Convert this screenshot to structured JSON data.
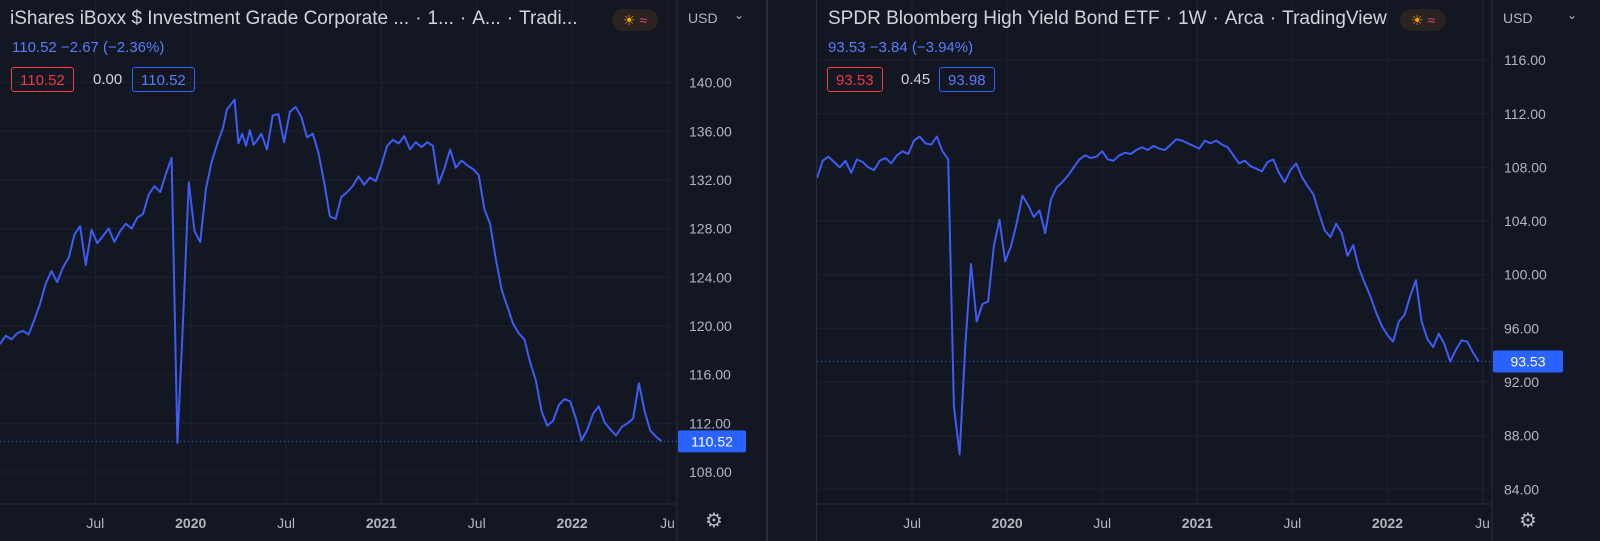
{
  "left": {
    "legend": {
      "title": "iShares iBoxx $ Investment Grade Corporate ...",
      "interval": "1...",
      "exchange": "A...",
      "source": "Tradi...",
      "change_line": "110.52  −2.67 (−2.36%)",
      "bid": "110.52",
      "spread": "0.00",
      "ask": "110.52"
    },
    "currency": "USD",
    "last_price_label": "110.52",
    "icons": {
      "weather": "sun-icon",
      "wave": "wave-icon",
      "settings": "gear-icon",
      "dropdown": "chevron-down-icon"
    },
    "colors": {
      "line": "#3d5cf5",
      "price_tag": "#2962ff",
      "bid_border": "#f23645",
      "ask_border": "#2962ff"
    }
  },
  "right": {
    "legend": {
      "title": "SPDR Bloomberg High Yield Bond ETF",
      "interval": "1W",
      "exchange": "Arca",
      "source": "TradingView",
      "change_line": "93.53  −3.84 (−3.94%)",
      "bid": "93.53",
      "spread": "0.45",
      "ask": "93.98"
    },
    "currency": "USD",
    "last_price_label": "93.53",
    "icons": {
      "weather": "sun-icon",
      "wave": "wave-icon",
      "settings": "gear-icon",
      "dropdown": "chevron-down-icon"
    },
    "colors": {
      "line": "#3d5cf5",
      "price_tag": "#2962ff",
      "bid_border": "#f23645",
      "ask_border": "#2962ff"
    }
  },
  "chart_data": [
    {
      "type": "line",
      "title": "iShares iBoxx $ Investment Grade Corporate ...",
      "xlabel": "",
      "ylabel": "",
      "x_ticks": [
        "Jul",
        "2020",
        "Jul",
        "2021",
        "Jul",
        "2022",
        "Ju"
      ],
      "x_tick_pos": [
        0.5,
        1.0,
        1.5,
        2.0,
        2.5,
        3.0,
        3.5
      ],
      "y_ticks": [
        "108.00",
        "112.00",
        "116.00",
        "120.00",
        "124.00",
        "128.00",
        "132.00",
        "136.00",
        "140.00"
      ],
      "ylim": [
        105.7,
        143.5
      ],
      "xlim": [
        0.0,
        3.55
      ],
      "last_price": 110.52,
      "grid": true,
      "x": [
        0.0,
        0.03,
        0.06,
        0.09,
        0.12,
        0.15,
        0.18,
        0.21,
        0.24,
        0.27,
        0.3,
        0.33,
        0.36,
        0.39,
        0.42,
        0.45,
        0.48,
        0.51,
        0.54,
        0.57,
        0.6,
        0.63,
        0.66,
        0.69,
        0.72,
        0.75,
        0.78,
        0.81,
        0.84,
        0.87,
        0.9,
        0.93,
        0.96,
        0.99,
        1.02,
        1.05,
        1.08,
        1.11,
        1.14,
        1.17,
        1.19,
        1.21,
        1.23,
        1.25,
        1.27,
        1.29,
        1.31,
        1.33,
        1.35,
        1.37,
        1.4,
        1.43,
        1.46,
        1.49,
        1.52,
        1.55,
        1.58,
        1.61,
        1.64,
        1.67,
        1.7,
        1.73,
        1.76,
        1.79,
        1.82,
        1.85,
        1.88,
        1.91,
        1.94,
        1.97,
        2.0,
        2.03,
        2.06,
        2.09,
        2.12,
        2.15,
        2.18,
        2.21,
        2.24,
        2.27,
        2.3,
        2.33,
        2.36,
        2.39,
        2.42,
        2.45,
        2.48,
        2.51,
        2.54,
        2.57,
        2.6,
        2.63,
        2.66,
        2.69,
        2.72,
        2.75,
        2.78,
        2.81,
        2.84,
        2.87,
        2.9,
        2.93,
        2.96,
        2.99,
        3.02,
        3.05,
        3.08,
        3.11,
        3.14,
        3.17,
        3.2,
        3.23,
        3.26,
        3.29,
        3.32,
        3.35,
        3.38,
        3.41,
        3.44,
        3.47
      ],
      "y": [
        118.5,
        119.2,
        118.9,
        119.4,
        119.6,
        119.3,
        120.5,
        121.8,
        123.5,
        124.5,
        123.6,
        124.8,
        125.6,
        127.5,
        128.2,
        125.0,
        127.9,
        126.8,
        127.4,
        128.0,
        126.9,
        127.8,
        128.4,
        128.0,
        128.9,
        129.2,
        130.8,
        131.5,
        131.0,
        132.5,
        133.8,
        110.4,
        120.5,
        131.8,
        127.8,
        126.9,
        131.3,
        133.5,
        135.0,
        136.3,
        137.8,
        138.2,
        138.6,
        135.0,
        135.8,
        134.8,
        136.1,
        134.9,
        135.3,
        135.8,
        134.5,
        137.3,
        137.4,
        135.1,
        137.6,
        138.0,
        137.2,
        135.5,
        135.8,
        134.2,
        131.8,
        129.0,
        128.8,
        130.6,
        131.0,
        131.5,
        132.3,
        131.6,
        132.2,
        131.9,
        133.2,
        134.8,
        135.3,
        135.0,
        135.6,
        134.5,
        135.1,
        134.7,
        135.1,
        134.8,
        131.7,
        132.9,
        134.5,
        133.0,
        133.6,
        133.2,
        132.9,
        132.4,
        129.6,
        128.4,
        125.5,
        123.0,
        121.6,
        120.2,
        119.4,
        118.9,
        117.0,
        115.5,
        113.0,
        111.8,
        112.2,
        113.5,
        114.0,
        113.8,
        112.4,
        110.6,
        111.5,
        112.8,
        113.4,
        112.1,
        111.5,
        111.0,
        111.7,
        112.0,
        112.4,
        115.3,
        113.0,
        111.4,
        110.9,
        110.52
      ]
    },
    {
      "type": "line",
      "title": "SPDR Bloomberg High Yield Bond ETF",
      "xlabel": "",
      "ylabel": "",
      "x_ticks": [
        "Jul",
        "2020",
        "Jul",
        "2021",
        "Jul",
        "2022",
        "Ju"
      ],
      "x_tick_pos": [
        0.5,
        1.0,
        1.5,
        2.0,
        2.5,
        3.0,
        3.5
      ],
      "y_ticks": [
        "84.00",
        "88.00",
        "92.00",
        "96.00",
        "100.00",
        "104.00",
        "108.00",
        "112.00",
        "116.00"
      ],
      "ylim": [
        83.2,
        117.5
      ],
      "xlim": [
        0.0,
        3.55
      ],
      "last_price": 93.53,
      "grid": true,
      "x": [
        0.0,
        0.03,
        0.06,
        0.09,
        0.12,
        0.15,
        0.18,
        0.21,
        0.24,
        0.27,
        0.3,
        0.33,
        0.36,
        0.39,
        0.42,
        0.45,
        0.48,
        0.51,
        0.54,
        0.57,
        0.6,
        0.63,
        0.66,
        0.69,
        0.72,
        0.75,
        0.78,
        0.81,
        0.84,
        0.87,
        0.9,
        0.93,
        0.96,
        0.99,
        1.02,
        1.05,
        1.08,
        1.11,
        1.14,
        1.17,
        1.2,
        1.23,
        1.26,
        1.29,
        1.32,
        1.35,
        1.38,
        1.41,
        1.44,
        1.47,
        1.5,
        1.53,
        1.56,
        1.59,
        1.62,
        1.65,
        1.68,
        1.71,
        1.74,
        1.77,
        1.8,
        1.83,
        1.86,
        1.89,
        1.92,
        1.95,
        1.98,
        2.01,
        2.04,
        2.07,
        2.1,
        2.13,
        2.16,
        2.19,
        2.22,
        2.25,
        2.28,
        2.31,
        2.34,
        2.37,
        2.4,
        2.43,
        2.46,
        2.49,
        2.52,
        2.55,
        2.58,
        2.61,
        2.64,
        2.67,
        2.7,
        2.73,
        2.76,
        2.79,
        2.82,
        2.85,
        2.88,
        2.91,
        2.94,
        2.97,
        3.0,
        3.03,
        3.06,
        3.09,
        3.12,
        3.15,
        3.18,
        3.21,
        3.24,
        3.27,
        3.3,
        3.33,
        3.36,
        3.39,
        3.42,
        3.45,
        3.48
      ],
      "y": [
        107.2,
        108.5,
        108.8,
        108.4,
        108.0,
        108.5,
        107.6,
        108.6,
        108.4,
        108.0,
        107.8,
        108.5,
        108.7,
        108.3,
        108.9,
        109.2,
        109.0,
        110.0,
        110.3,
        109.8,
        109.7,
        110.3,
        109.2,
        108.6,
        90.2,
        86.6,
        94.7,
        100.8,
        96.5,
        97.8,
        98.0,
        102.1,
        104.1,
        101.0,
        102.1,
        103.8,
        105.9,
        105.2,
        104.3,
        104.8,
        103.1,
        105.6,
        106.5,
        106.9,
        107.4,
        108.0,
        108.6,
        108.9,
        108.7,
        108.8,
        109.2,
        108.6,
        108.5,
        108.9,
        109.1,
        109.0,
        109.3,
        109.5,
        109.3,
        109.6,
        109.4,
        109.3,
        109.7,
        110.1,
        110.0,
        109.8,
        109.6,
        109.4,
        110.0,
        109.8,
        110.0,
        109.7,
        109.5,
        108.9,
        108.3,
        108.5,
        108.1,
        107.9,
        107.7,
        108.4,
        108.6,
        107.6,
        106.9,
        107.8,
        108.3,
        107.3,
        106.6,
        106.0,
        104.6,
        103.3,
        102.8,
        103.8,
        103.1,
        101.4,
        102.2,
        100.5,
        99.4,
        98.4,
        97.2,
        96.2,
        95.5,
        95.0,
        96.5,
        97.0,
        98.4,
        99.6,
        96.5,
        95.2,
        94.6,
        95.6,
        94.8,
        93.53,
        94.4,
        95.1,
        95.0,
        94.2,
        93.53
      ]
    }
  ]
}
